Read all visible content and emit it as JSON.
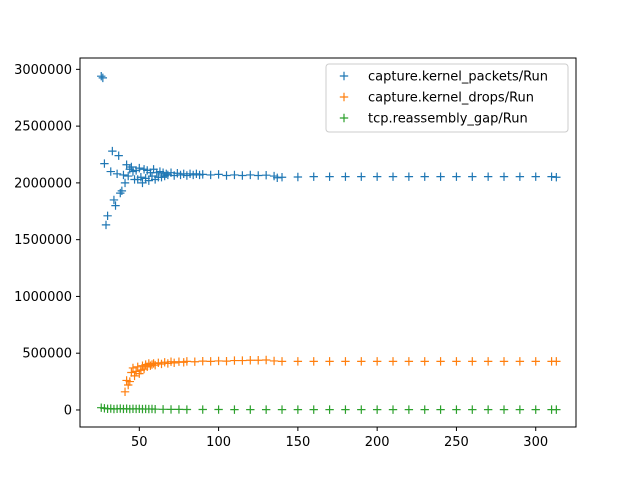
{
  "chart_data": {
    "type": "scatter",
    "title": "",
    "xlabel": "",
    "ylabel": "",
    "xlim": [
      12.6,
      325.4
    ],
    "ylim": [
      -150000,
      3100000
    ],
    "xticks": [
      50,
      100,
      150,
      200,
      250,
      300
    ],
    "yticks": [
      0,
      500000,
      1000000,
      1500000,
      2000000,
      2500000,
      3000000
    ],
    "xtick_labels": [
      "50",
      "100",
      "150",
      "200",
      "250",
      "300"
    ],
    "ytick_labels": [
      "0",
      "500000",
      "1000000",
      "1500000",
      "2000000",
      "2500000",
      "3000000"
    ],
    "grid": false,
    "legend_position": "top-right",
    "marker": "+",
    "series": [
      {
        "name": "capture.kernel_packets/Run",
        "color": "#1f77b4",
        "points": [
          [
            26,
            2940000
          ],
          [
            27,
            2925000
          ],
          [
            28,
            2170000
          ],
          [
            29,
            1630000
          ],
          [
            30,
            1710000
          ],
          [
            32,
            2100000
          ],
          [
            33,
            2280000
          ],
          [
            34,
            1850000
          ],
          [
            35,
            1800000
          ],
          [
            36,
            2080000
          ],
          [
            37,
            2240000
          ],
          [
            38,
            1910000
          ],
          [
            39,
            1930000
          ],
          [
            40,
            2070000
          ],
          [
            41,
            2000000
          ],
          [
            42,
            2160000
          ],
          [
            43,
            2060000
          ],
          [
            44,
            2120000
          ],
          [
            45,
            2140000
          ],
          [
            46,
            2100000
          ],
          [
            47,
            2030000
          ],
          [
            48,
            2110000
          ],
          [
            49,
            2030000
          ],
          [
            50,
            2130000
          ],
          [
            51,
            2050000
          ],
          [
            52,
            2000000
          ],
          [
            53,
            2120000
          ],
          [
            54,
            2040000
          ],
          [
            55,
            2110000
          ],
          [
            56,
            2020000
          ],
          [
            57,
            2090000
          ],
          [
            58,
            2060000
          ],
          [
            59,
            2120000
          ],
          [
            60,
            2030000
          ],
          [
            61,
            2090000
          ],
          [
            62,
            2050000
          ],
          [
            63,
            2100000
          ],
          [
            64,
            2050000
          ],
          [
            65,
            2090000
          ],
          [
            66,
            2060000
          ],
          [
            67,
            2080000
          ],
          [
            68,
            2070000
          ],
          [
            70,
            2090000
          ],
          [
            72,
            2065000
          ],
          [
            74,
            2085000
          ],
          [
            76,
            2070000
          ],
          [
            78,
            2080000
          ],
          [
            80,
            2065000
          ],
          [
            82,
            2080000
          ],
          [
            84,
            2070000
          ],
          [
            86,
            2080000
          ],
          [
            88,
            2070000
          ],
          [
            90,
            2075000
          ],
          [
            95,
            2070000
          ],
          [
            100,
            2075000
          ],
          [
            105,
            2065000
          ],
          [
            110,
            2070000
          ],
          [
            115,
            2065000
          ],
          [
            120,
            2070000
          ],
          [
            125,
            2065000
          ],
          [
            130,
            2068000
          ],
          [
            135,
            2060000
          ],
          [
            137,
            2045000
          ],
          [
            140,
            2050000
          ],
          [
            150,
            2052000
          ],
          [
            160,
            2055000
          ],
          [
            170,
            2055000
          ],
          [
            180,
            2055000
          ],
          [
            190,
            2055000
          ],
          [
            200,
            2055000
          ],
          [
            210,
            2055000
          ],
          [
            220,
            2055000
          ],
          [
            230,
            2055000
          ],
          [
            240,
            2055000
          ],
          [
            250,
            2055000
          ],
          [
            260,
            2055000
          ],
          [
            270,
            2055000
          ],
          [
            280,
            2055000
          ],
          [
            290,
            2055000
          ],
          [
            300,
            2055000
          ],
          [
            310,
            2055000
          ],
          [
            313,
            2050000
          ]
        ]
      },
      {
        "name": "capture.kernel_drops/Run",
        "color": "#ff7f0e",
        "points": [
          [
            41,
            160000
          ],
          [
            42,
            260000
          ],
          [
            43,
            220000
          ],
          [
            44,
            250000
          ],
          [
            45,
            330000
          ],
          [
            46,
            370000
          ],
          [
            47,
            300000
          ],
          [
            48,
            340000
          ],
          [
            49,
            380000
          ],
          [
            50,
            320000
          ],
          [
            51,
            350000
          ],
          [
            52,
            390000
          ],
          [
            53,
            360000
          ],
          [
            54,
            400000
          ],
          [
            55,
            380000
          ],
          [
            56,
            410000
          ],
          [
            57,
            390000
          ],
          [
            58,
            400000
          ],
          [
            59,
            410000
          ],
          [
            60,
            395000
          ],
          [
            62,
            415000
          ],
          [
            64,
            405000
          ],
          [
            66,
            420000
          ],
          [
            68,
            410000
          ],
          [
            70,
            425000
          ],
          [
            72,
            415000
          ],
          [
            75,
            425000
          ],
          [
            78,
            420000
          ],
          [
            80,
            428000
          ],
          [
            85,
            425000
          ],
          [
            90,
            430000
          ],
          [
            95,
            428000
          ],
          [
            100,
            432000
          ],
          [
            105,
            430000
          ],
          [
            110,
            435000
          ],
          [
            115,
            435000
          ],
          [
            120,
            438000
          ],
          [
            125,
            438000
          ],
          [
            130,
            440000
          ],
          [
            135,
            432000
          ],
          [
            140,
            428000
          ],
          [
            150,
            428000
          ],
          [
            160,
            428000
          ],
          [
            170,
            428000
          ],
          [
            180,
            428000
          ],
          [
            190,
            428000
          ],
          [
            200,
            428000
          ],
          [
            210,
            428000
          ],
          [
            220,
            428000
          ],
          [
            230,
            428000
          ],
          [
            240,
            428000
          ],
          [
            250,
            428000
          ],
          [
            260,
            428000
          ],
          [
            270,
            428000
          ],
          [
            280,
            428000
          ],
          [
            290,
            428000
          ],
          [
            300,
            428000
          ],
          [
            310,
            428000
          ],
          [
            313,
            428000
          ]
        ]
      },
      {
        "name": "tcp.reassembly_gap/Run",
        "color": "#2ca02c",
        "points": [
          [
            26,
            20000
          ],
          [
            28,
            15000
          ],
          [
            30,
            10000
          ],
          [
            32,
            12000
          ],
          [
            34,
            8000
          ],
          [
            36,
            10000
          ],
          [
            38,
            12000
          ],
          [
            40,
            9000
          ],
          [
            42,
            11000
          ],
          [
            44,
            8000
          ],
          [
            46,
            10000
          ],
          [
            48,
            9000
          ],
          [
            50,
            10000
          ],
          [
            52,
            8000
          ],
          [
            54,
            9000
          ],
          [
            56,
            8000
          ],
          [
            58,
            9000
          ],
          [
            60,
            7000
          ],
          [
            65,
            6000
          ],
          [
            70,
            5000
          ],
          [
            75,
            5000
          ],
          [
            80,
            4000
          ],
          [
            90,
            4000
          ],
          [
            100,
            4000
          ],
          [
            110,
            3000
          ],
          [
            120,
            3000
          ],
          [
            130,
            3000
          ],
          [
            140,
            3000
          ],
          [
            150,
            3000
          ],
          [
            160,
            3000
          ],
          [
            170,
            3000
          ],
          [
            180,
            3000
          ],
          [
            190,
            3000
          ],
          [
            200,
            3000
          ],
          [
            210,
            3000
          ],
          [
            220,
            3000
          ],
          [
            230,
            3000
          ],
          [
            240,
            3000
          ],
          [
            250,
            3000
          ],
          [
            260,
            3000
          ],
          [
            270,
            3000
          ],
          [
            280,
            3000
          ],
          [
            290,
            3000
          ],
          [
            300,
            3000
          ],
          [
            310,
            3000
          ],
          [
            313,
            3000
          ]
        ]
      }
    ]
  }
}
